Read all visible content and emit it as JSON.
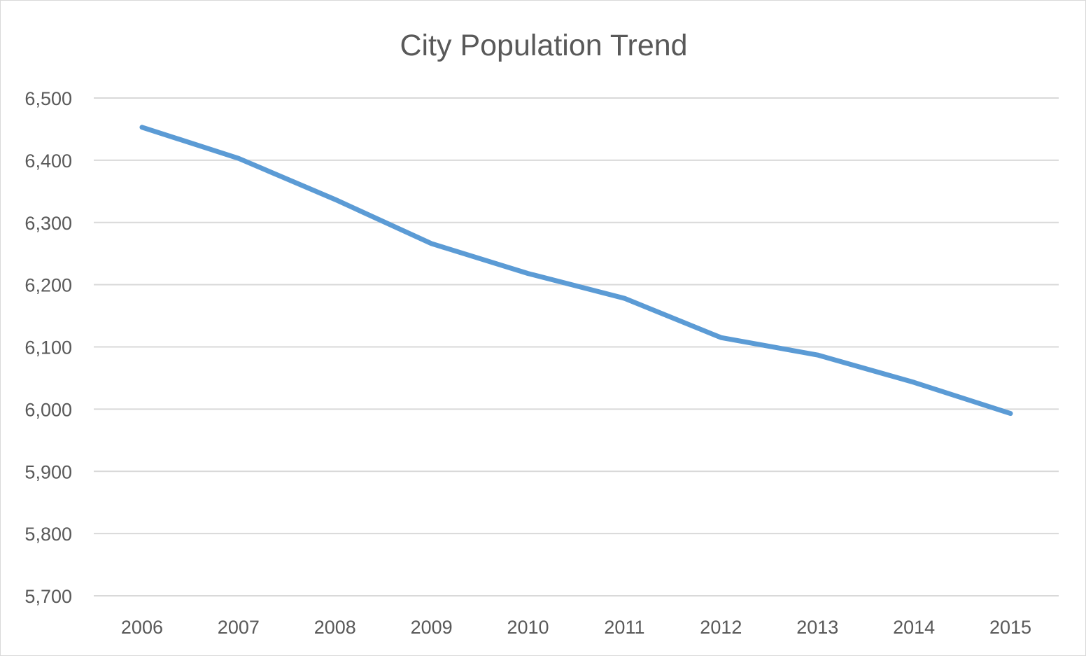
{
  "chart_data": {
    "type": "line",
    "title": "City Population Trend",
    "xlabel": "",
    "ylabel": "",
    "categories": [
      "2006",
      "2007",
      "2008",
      "2009",
      "2010",
      "2011",
      "2012",
      "2013",
      "2014",
      "2015"
    ],
    "series": [
      {
        "values": [
          6453,
          6403,
          6337,
          6266,
          6218,
          6178,
          6115,
          6087,
          6043,
          5993
        ],
        "color": "#5b9bd5"
      }
    ],
    "ylim": [
      5700,
      6500
    ],
    "yticks": [
      5700,
      5800,
      5900,
      6000,
      6100,
      6200,
      6300,
      6400,
      6500
    ],
    "ytick_labels": [
      "5,700",
      "5,800",
      "5,900",
      "6,000",
      "6,100",
      "6,200",
      "6,300",
      "6,400",
      "6,500"
    ],
    "grid": true,
    "legend": "none",
    "gridline_color": "#d9d9d9",
    "text_color": "#595959"
  }
}
